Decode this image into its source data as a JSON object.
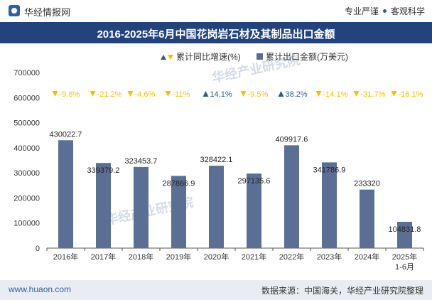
{
  "header": {
    "brand": "华经情报网",
    "tag_left": "专业严谨",
    "tag_right": "客观科学"
  },
  "title": "2016-2025年6月中国花岗岩石材及其制品出口金额",
  "footer": {
    "url": "www.huaon.com",
    "source": "数据来源：中国海关，华经产业研究院整理"
  },
  "chart_data": {
    "type": "bar",
    "categories": [
      "2016年",
      "2017年",
      "2018年",
      "2019年",
      "2020年",
      "2021年",
      "2022年",
      "2023年",
      "2024年",
      "2025年\n1-6月"
    ],
    "series": [
      {
        "name": "累计出口金额(万美元)",
        "values": [
          430022.7,
          339379.2,
          323453.7,
          287866.9,
          328422.1,
          297135.6,
          409917.6,
          341786.9,
          233320,
          104831.8
        ],
        "labels": [
          "430022.7",
          "339379.2",
          "323453.7",
          "287866.9",
          "328422.1",
          "297135.6",
          "409917.6",
          "341786.9",
          "233320",
          "104831.8"
        ],
        "color": "#5b6f94"
      },
      {
        "name": "累计同比增速(%)",
        "values": [
          -9.8,
          -21.2,
          -4.6,
          -11,
          14.1,
          -9.5,
          38.2,
          -14.1,
          -31.7,
          -16.1
        ],
        "labels": [
          "-9.8%",
          "-21.2%",
          "-4.6%",
          "-11%",
          "14.1%",
          "-9.5%",
          "38.2%",
          "-14.1%",
          "-31.7%",
          "-16.1%"
        ],
        "up_color": "#2b5f8a",
        "down_color": "#f2c200"
      }
    ],
    "y_ticks": [
      "0",
      "100000",
      "200000",
      "300000",
      "400000",
      "500000",
      "600000",
      "700000"
    ],
    "ylim": [
      0,
      700000
    ]
  },
  "watermark": "华经产业研究院"
}
